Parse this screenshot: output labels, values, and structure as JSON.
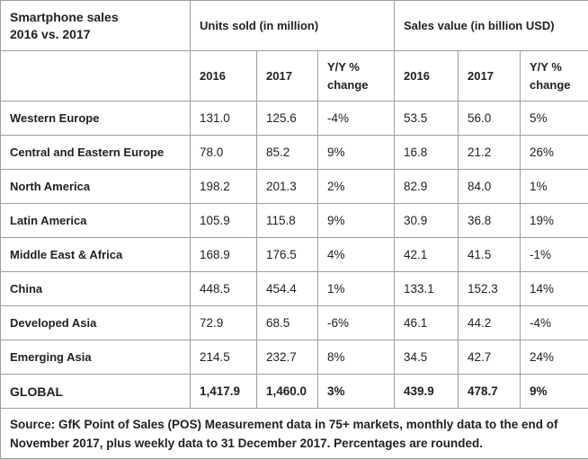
{
  "chart_data": {
    "type": "table",
    "title": "Smartphone sales 2016 vs. 2017",
    "title_lines": [
      "Smartphone sales",
      "2016 vs. 2017"
    ],
    "column_groups": [
      "Units sold (in million)",
      "Sales value (in billion USD)"
    ],
    "columns": [
      "2016",
      "2017",
      "Y/Y % change",
      "2016",
      "2017",
      "Y/Y % change"
    ],
    "rows": [
      {
        "region": "Western Europe",
        "values": [
          "131.0",
          "125.6",
          "-4%",
          "53.5",
          "56.0",
          "5%"
        ],
        "bold": false
      },
      {
        "region": "Central and Eastern Europe",
        "values": [
          "78.0",
          "85.2",
          "9%",
          "16.8",
          "21.2",
          "26%"
        ],
        "bold": false
      },
      {
        "region": "North America",
        "values": [
          "198.2",
          "201.3",
          "2%",
          "82.9",
          "84.0",
          "1%"
        ],
        "bold": false
      },
      {
        "region": "Latin America",
        "values": [
          "105.9",
          "115.8",
          "9%",
          "30.9",
          "36.8",
          "19%"
        ],
        "bold": false
      },
      {
        "region": "Middle East & Africa",
        "values": [
          "168.9",
          "176.5",
          "4%",
          "42.1",
          "41.5",
          "-1%"
        ],
        "bold": false
      },
      {
        "region": "China",
        "values": [
          "448.5",
          "454.4",
          "1%",
          "133.1",
          "152.3",
          "14%"
        ],
        "bold": false
      },
      {
        "region": "Developed Asia",
        "values": [
          "72.9",
          "68.5",
          "-6%",
          "46.1",
          "44.2",
          "-4%"
        ],
        "bold": false
      },
      {
        "region": "Emerging Asia",
        "values": [
          "214.5",
          "232.7",
          "8%",
          "34.5",
          "42.7",
          "24%"
        ],
        "bold": false
      },
      {
        "region": "GLOBAL",
        "values": [
          "1,417.9",
          "1,460.0",
          "3%",
          "439.9",
          "478.7",
          "9%"
        ],
        "bold": true
      }
    ],
    "source_note": "Source: GfK Point of Sales (POS) Measurement data in 75+ markets, monthly data to the end of November 2017, plus weekly data to 31 December 2017. Percentages are rounded."
  },
  "colors": {
    "background": "#ffffff",
    "border": "#9e9e9e",
    "outer_border": "#8a8a8a",
    "text": "#222222"
  }
}
